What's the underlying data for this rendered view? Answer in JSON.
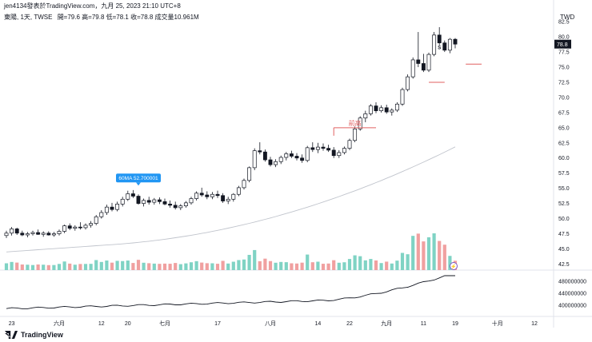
{
  "header": {
    "publish_line": "jen4134發表於TradingView.com，九月 25, 2023 21:10 UTC+8",
    "symbol_line": "東陽, 1天, TWSE",
    "ohlc": "開=79.6  高=79.8  低=78.1  收=78.8  成交量10.961M"
  },
  "footer": {
    "brand": "TradingView"
  },
  "colors": {
    "up": "#7fd3c4",
    "down": "#f0a0a0",
    "bull_body": "#ffffff",
    "bear_body": "#131722",
    "ma": "#c0c4cc",
    "annot": "#e06060",
    "tooltip": "#2196f3",
    "last_price": "#131722",
    "volume_ma": "#131722"
  },
  "chart_data": [
    {
      "type": "candlestick",
      "currency": "TWD",
      "last_price": "78.8",
      "y_ticks": [
        "82.5",
        "80.0",
        "77.5",
        "75.0",
        "72.5",
        "70.0",
        "67.5",
        "65.0",
        "62.5",
        "60.0",
        "57.5",
        "55.0",
        "52.5",
        "50.0",
        "47.5",
        "45.0",
        "42.5"
      ],
      "ylim": [
        41.5,
        84.5
      ],
      "x_ticks": [
        {
          "i": 1,
          "label": "23"
        },
        {
          "i": 10,
          "label": "六月"
        },
        {
          "i": 18,
          "label": "12"
        },
        {
          "i": 23,
          "label": "20"
        },
        {
          "i": 30,
          "label": "七月"
        },
        {
          "i": 40,
          "label": "17"
        },
        {
          "i": 50,
          "label": "八月"
        },
        {
          "i": 59,
          "label": "14"
        },
        {
          "i": 65,
          "label": "22"
        },
        {
          "i": 72,
          "label": "九月"
        },
        {
          "i": 79,
          "label": "11"
        },
        {
          "i": 85,
          "label": "19"
        },
        {
          "i": 93,
          "label": "十月"
        },
        {
          "i": 100,
          "label": "12"
        }
      ],
      "ohlc": [
        [
          47.2,
          48.0,
          46.8,
          47.6
        ],
        [
          47.6,
          48.6,
          47.2,
          48.3
        ],
        [
          48.3,
          48.5,
          47.3,
          47.6
        ],
        [
          47.6,
          48.0,
          47.1,
          47.3
        ],
        [
          47.3,
          47.8,
          46.9,
          47.5
        ],
        [
          47.5,
          48.0,
          47.2,
          47.7
        ],
        [
          47.7,
          48.2,
          47.3,
          47.4
        ],
        [
          47.4,
          47.9,
          47.0,
          47.6
        ],
        [
          47.6,
          47.9,
          47.2,
          47.3
        ],
        [
          47.3,
          47.8,
          47.0,
          47.5
        ],
        [
          47.5,
          48.2,
          47.2,
          47.9
        ],
        [
          47.9,
          49.0,
          47.6,
          48.8
        ],
        [
          48.8,
          49.2,
          48.1,
          48.4
        ],
        [
          48.4,
          48.9,
          48.0,
          48.6
        ],
        [
          48.6,
          49.4,
          48.2,
          48.5
        ],
        [
          48.5,
          49.2,
          48.2,
          48.9
        ],
        [
          48.9,
          49.6,
          48.5,
          49.2
        ],
        [
          49.2,
          50.6,
          48.9,
          50.3
        ],
        [
          50.3,
          51.4,
          50.0,
          51.0
        ],
        [
          51.0,
          52.3,
          50.6,
          51.9
        ],
        [
          51.9,
          52.6,
          51.2,
          51.5
        ],
        [
          51.5,
          52.8,
          51.2,
          52.4
        ],
        [
          52.4,
          53.6,
          52.0,
          53.2
        ],
        [
          53.2,
          54.6,
          52.9,
          54.1
        ],
        [
          54.1,
          54.7,
          53.4,
          53.7
        ],
        [
          53.7,
          54.0,
          52.3,
          52.5
        ],
        [
          52.5,
          53.3,
          52.0,
          53.0
        ],
        [
          53.0,
          53.6,
          52.3,
          52.7
        ],
        [
          52.7,
          53.4,
          52.3,
          53.1
        ],
        [
          53.1,
          53.5,
          52.4,
          52.8
        ],
        [
          52.8,
          53.3,
          52.2,
          52.4
        ],
        [
          52.4,
          53.0,
          51.8,
          52.2
        ],
        [
          52.2,
          52.8,
          51.5,
          51.8
        ],
        [
          51.8,
          52.4,
          51.4,
          52.1
        ],
        [
          52.1,
          52.9,
          51.8,
          52.6
        ],
        [
          52.6,
          53.6,
          52.3,
          53.3
        ],
        [
          53.3,
          54.5,
          53.0,
          54.2
        ],
        [
          54.2,
          55.1,
          53.6,
          53.9
        ],
        [
          53.9,
          54.5,
          53.2,
          53.6
        ],
        [
          53.6,
          54.4,
          53.2,
          54.0
        ],
        [
          54.0,
          54.6,
          53.4,
          53.8
        ],
        [
          53.8,
          54.2,
          52.6,
          52.9
        ],
        [
          52.9,
          53.6,
          52.4,
          53.2
        ],
        [
          53.2,
          54.2,
          52.8,
          54.0
        ],
        [
          54.0,
          55.4,
          53.7,
          55.1
        ],
        [
          55.1,
          56.6,
          54.8,
          56.3
        ],
        [
          56.3,
          58.6,
          56.0,
          58.4
        ],
        [
          58.4,
          61.6,
          58.0,
          61.2
        ],
        [
          61.2,
          62.6,
          60.6,
          61.0
        ],
        [
          61.0,
          61.4,
          59.4,
          59.7
        ],
        [
          59.7,
          60.2,
          58.6,
          58.9
        ],
        [
          58.9,
          59.8,
          58.5,
          59.4
        ],
        [
          59.4,
          60.4,
          59.0,
          60.1
        ],
        [
          60.1,
          61.0,
          59.6,
          60.7
        ],
        [
          60.7,
          61.2,
          60.0,
          60.3
        ],
        [
          60.3,
          60.8,
          59.6,
          60.0
        ],
        [
          60.0,
          60.6,
          59.2,
          59.6
        ],
        [
          59.6,
          62.0,
          59.3,
          61.7
        ],
        [
          61.7,
          62.6,
          61.0,
          61.4
        ],
        [
          61.4,
          62.5,
          60.8,
          61.8
        ],
        [
          61.8,
          62.4,
          61.2,
          61.6
        ],
        [
          61.6,
          62.2,
          61.0,
          61.3
        ],
        [
          61.3,
          61.8,
          60.0,
          60.4
        ],
        [
          60.4,
          61.3,
          60.0,
          60.9
        ],
        [
          60.9,
          61.9,
          60.6,
          61.6
        ],
        [
          61.6,
          63.2,
          61.3,
          62.9
        ],
        [
          62.9,
          65.2,
          62.6,
          64.8
        ],
        [
          64.8,
          66.9,
          64.5,
          66.6
        ],
        [
          66.6,
          67.8,
          65.9,
          67.3
        ],
        [
          67.3,
          68.9,
          67.0,
          68.6
        ],
        [
          68.6,
          69.2,
          67.4,
          67.8
        ],
        [
          67.8,
          68.7,
          67.5,
          68.3
        ],
        [
          68.3,
          68.8,
          67.3,
          67.6
        ],
        [
          67.6,
          68.2,
          67.0,
          67.9
        ],
        [
          67.9,
          69.2,
          67.6,
          68.9
        ],
        [
          68.9,
          71.6,
          68.6,
          71.3
        ],
        [
          71.3,
          73.8,
          71.0,
          73.4
        ],
        [
          73.4,
          76.6,
          73.1,
          76.2
        ],
        [
          76.2,
          80.8,
          75.0,
          75.6
        ],
        [
          75.6,
          77.2,
          74.2,
          74.5
        ],
        [
          74.5,
          77.4,
          74.2,
          77.1
        ],
        [
          77.1,
          80.8,
          76.8,
          80.3
        ],
        [
          80.3,
          81.6,
          78.6,
          79.0
        ],
        [
          79.0,
          79.4,
          77.5,
          77.8
        ],
        [
          77.8,
          79.8,
          77.3,
          79.6
        ],
        [
          79.6,
          79.8,
          78.1,
          78.8
        ]
      ],
      "volume_ma_ticks": [
        "480000000",
        "440000000",
        "400000000"
      ],
      "annotations": [
        {
          "type": "callout",
          "label": "60MA 52.700001",
          "bar": 25
        },
        {
          "type": "level",
          "label": "前高",
          "y": 65.0,
          "from": 62,
          "to": 70
        },
        {
          "type": "marker",
          "label": "S",
          "bar": 82,
          "y": 78.0
        },
        {
          "type": "level",
          "label": "",
          "y": 72.5,
          "from": 80,
          "to": 83
        },
        {
          "type": "level",
          "label": "",
          "y": 75.5,
          "from": 87,
          "to": 90
        }
      ]
    }
  ]
}
